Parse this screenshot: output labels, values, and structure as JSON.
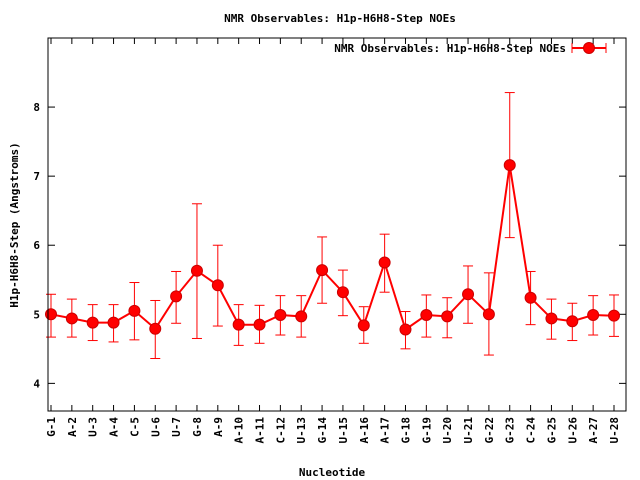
{
  "chart_data": {
    "type": "line",
    "title": "NMR Observables: H1p-H6H8-Step NOEs",
    "xlabel": "Nucleotide",
    "ylabel": "H1p-H6H8-Step (Angstroms)",
    "ylim": [
      3.6,
      9.0
    ],
    "yticks": [
      4,
      5,
      6,
      7,
      8
    ],
    "grid": false,
    "legend": "top-right",
    "series_color": "#ff0000",
    "categories": [
      "G-1",
      "A-2",
      "U-3",
      "A-4",
      "C-5",
      "U-6",
      "U-7",
      "G-8",
      "A-9",
      "A-10",
      "A-11",
      "C-12",
      "U-13",
      "G-14",
      "U-15",
      "A-16",
      "A-17",
      "G-18",
      "G-19",
      "U-20",
      "U-21",
      "G-22",
      "G-23",
      "C-24",
      "G-25",
      "U-26",
      "A-27",
      "U-28"
    ],
    "series": [
      {
        "name": "NMR Observables: H1p-H6H8-Step NOEs",
        "values": [
          5.0,
          4.94,
          4.88,
          4.88,
          5.05,
          4.79,
          5.26,
          5.63,
          5.42,
          4.85,
          4.85,
          4.99,
          4.97,
          5.64,
          5.32,
          4.84,
          5.75,
          4.78,
          4.99,
          4.97,
          5.29,
          5.0,
          7.16,
          5.24,
          4.94,
          4.9,
          4.99,
          4.98
        ],
        "err_low": [
          4.67,
          4.67,
          4.62,
          4.6,
          4.63,
          4.36,
          4.87,
          4.65,
          4.83,
          4.55,
          4.58,
          4.7,
          4.67,
          5.16,
          4.98,
          4.58,
          5.32,
          4.5,
          4.67,
          4.66,
          4.87,
          4.41,
          6.11,
          4.85,
          4.64,
          4.62,
          4.7,
          4.68
        ],
        "err_high": [
          5.29,
          5.22,
          5.14,
          5.14,
          5.46,
          5.2,
          5.62,
          6.6,
          6.0,
          5.14,
          5.13,
          5.27,
          5.27,
          6.12,
          5.64,
          5.11,
          6.16,
          5.04,
          5.28,
          5.24,
          5.7,
          5.6,
          8.21,
          5.62,
          5.22,
          5.16,
          5.27,
          5.28
        ]
      }
    ]
  }
}
